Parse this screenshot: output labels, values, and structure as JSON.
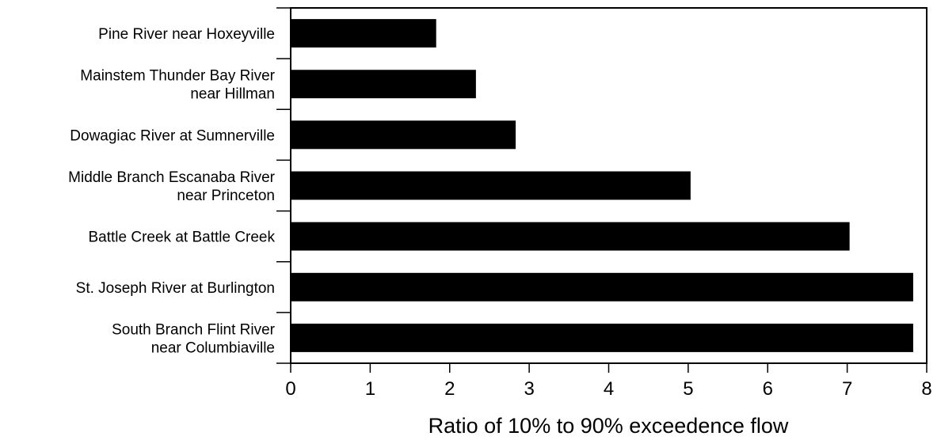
{
  "chart_data": {
    "type": "bar",
    "orientation": "horizontal",
    "categories": [
      [
        "Pine River near Hoxeyville"
      ],
      [
        "Mainstem Thunder Bay River",
        "near Hillman"
      ],
      [
        "Dowagiac River at Sumnerville"
      ],
      [
        "Middle Branch Escanaba River",
        "near Princeton"
      ],
      [
        "Battle Creek at Battle Creek"
      ],
      [
        "St. Joseph River at Burlington"
      ],
      [
        "South Branch Flint River",
        "near Columbiaville"
      ]
    ],
    "values": [
      1.83,
      2.33,
      2.83,
      5.03,
      7.03,
      7.83,
      7.83
    ],
    "xlabel": "Ratio of 10% to 90% exceedence flow",
    "xlim": [
      0,
      8
    ],
    "xticks": [
      "0",
      "1",
      "2",
      "3",
      "4",
      "5",
      "6",
      "7",
      "8"
    ],
    "bar_color": "#000000",
    "grid": false
  }
}
